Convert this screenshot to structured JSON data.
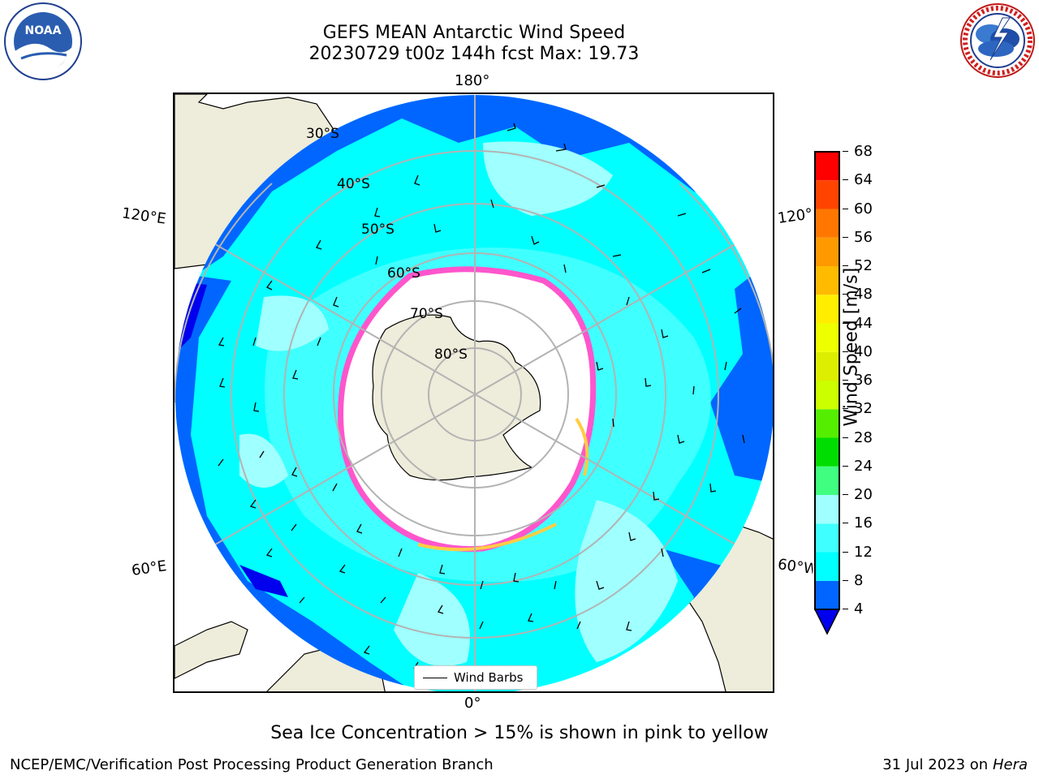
{
  "header": {
    "title_line1": "GEFS MEAN Antarctic Wind Speed",
    "title_line2": "20230729 t00z 144h fcst   Max: 19.73"
  },
  "logos": {
    "left": {
      "name": "noaa-logo",
      "text": "NOAA",
      "ring_text": "NATIONAL OCEANIC AND ATMOSPHERIC ADMINISTRATION · U.S. DEPARTMENT OF COMMERCE"
    },
    "right": {
      "name": "nws-logo",
      "ring_text": "NATIONAL WEATHER SERVICE"
    }
  },
  "map": {
    "projection": "south-polar-stereographic",
    "longitude_labels": {
      "top": "180°",
      "bottom": "0°",
      "upper_left": "120°E",
      "upper_right": "120°W",
      "lower_left": "60°E",
      "lower_right": "60°W"
    },
    "latitude_labels": [
      "30°S",
      "40°S",
      "50°S",
      "60°S",
      "70°S",
      "80°S"
    ],
    "legend": {
      "label": "Wind Barbs"
    },
    "colors": {
      "land": "#eeecda",
      "ice_edge": "#ff55cc",
      "ice_edge_yellow": "#ffcc44",
      "gridline": "#b3b3b3"
    }
  },
  "colorbar": {
    "label": "Wind Speed [m/s]",
    "ticks": [
      "4",
      "8",
      "12",
      "16",
      "20",
      "24",
      "28",
      "32",
      "36",
      "40",
      "44",
      "48",
      "52",
      "56",
      "60",
      "64",
      "68"
    ],
    "bins": [
      {
        "from": 4,
        "to": 8,
        "color": "#0066ff"
      },
      {
        "from": 8,
        "to": 12,
        "color": "#00ffff"
      },
      {
        "from": 12,
        "to": 16,
        "color": "#40ffff"
      },
      {
        "from": 16,
        "to": 20,
        "color": "#a0ffff"
      },
      {
        "from": 20,
        "to": 24,
        "color": "#40ff80"
      },
      {
        "from": 24,
        "to": 28,
        "color": "#00dd00"
      },
      {
        "from": 28,
        "to": 32,
        "color": "#55ee00"
      },
      {
        "from": 32,
        "to": 36,
        "color": "#ccff00"
      },
      {
        "from": 36,
        "to": 40,
        "color": "#ddee00"
      },
      {
        "from": 40,
        "to": 44,
        "color": "#eeff00"
      },
      {
        "from": 44,
        "to": 48,
        "color": "#ffee00"
      },
      {
        "from": 48,
        "to": 52,
        "color": "#ffbb00"
      },
      {
        "from": 52,
        "to": 56,
        "color": "#ff9900"
      },
      {
        "from": 56,
        "to": 60,
        "color": "#ff7700"
      },
      {
        "from": 60,
        "to": 64,
        "color": "#ff4400"
      },
      {
        "from": 64,
        "to": 68,
        "color": "#ff0000"
      }
    ],
    "under_color": "#0000ee"
  },
  "caption": "Sea Ice Concentration > 15% is shown in pink to yellow",
  "footer": {
    "left": "NCEP/EMC/Verification Post Processing Product Generation Branch",
    "right_date": "31 Jul 2023 on ",
    "right_host": "Hera"
  }
}
